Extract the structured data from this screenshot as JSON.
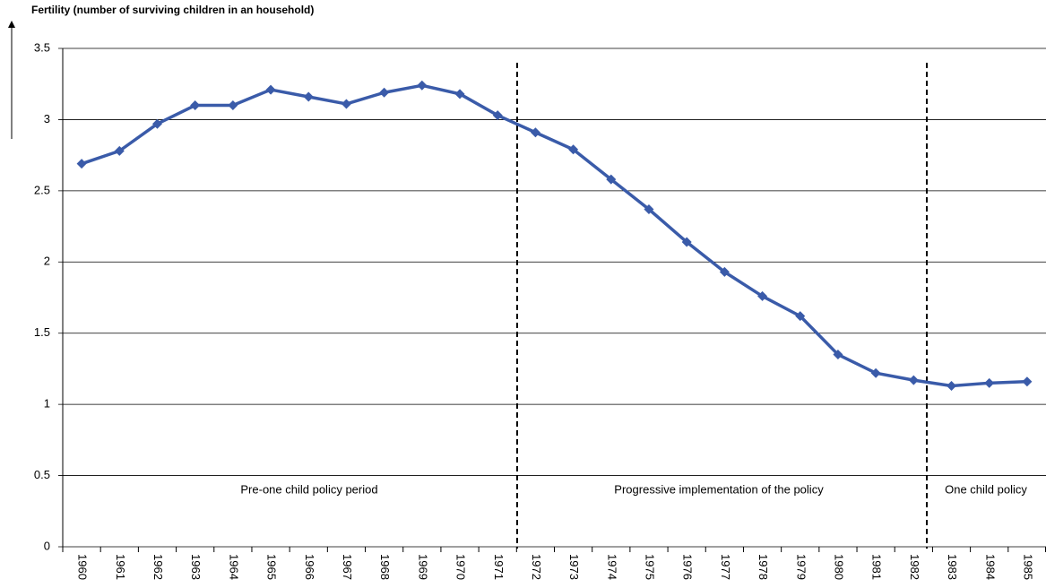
{
  "chart_data": {
    "type": "line",
    "y_label": "Fertility (number of surviving children in an household)",
    "categories": [
      "1960",
      "1961",
      "1962",
      "1963",
      "1964",
      "1965",
      "1966",
      "1967",
      "1968",
      "1969",
      "1970",
      "1971",
      "1972",
      "1973",
      "1974",
      "1975",
      "1976",
      "1977",
      "1978",
      "1979",
      "1980",
      "1981",
      "1982",
      "1983",
      "1984",
      "1985"
    ],
    "series": [
      {
        "color": "#3a5ba9",
        "values": [
          2.69,
          2.78,
          2.97,
          3.1,
          3.1,
          3.21,
          3.16,
          3.11,
          3.19,
          3.24,
          3.18,
          3.03,
          2.91,
          2.79,
          2.58,
          2.37,
          2.14,
          1.93,
          1.76,
          1.62,
          1.35,
          1.22,
          1.17,
          1.13,
          1.15,
          1.16
        ]
      }
    ],
    "ylim": [
      0,
      3.5
    ],
    "yticks": [
      0,
      0.5,
      1,
      1.5,
      2,
      2.5,
      3,
      3.5
    ],
    "grid": true,
    "annotations": [
      "Pre-one child policy period",
      "Progressive implementation of the policy",
      "One child policy"
    ]
  }
}
